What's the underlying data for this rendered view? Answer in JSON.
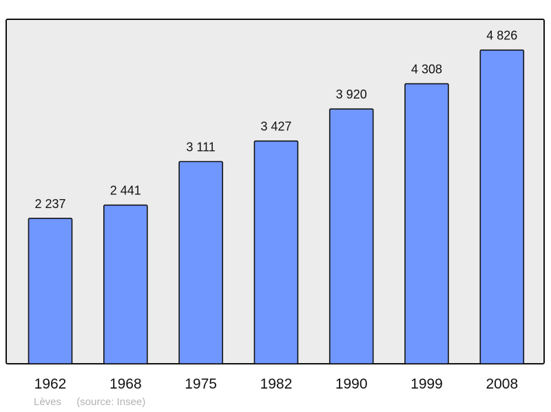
{
  "chart_data": {
    "type": "bar",
    "categories": [
      "1962",
      "1968",
      "1975",
      "1982",
      "1990",
      "1999",
      "2008"
    ],
    "values": [
      2237,
      2441,
      3111,
      3427,
      3920,
      4308,
      4826
    ],
    "value_labels": [
      "2 237",
      "2 441",
      "3 111",
      "3 427",
      "3 920",
      "4 308",
      "4 826"
    ],
    "title": "",
    "xlabel": "",
    "ylabel": "",
    "ylim": [
      0,
      5300
    ],
    "grid": false,
    "bar_color": "#7097ff",
    "background_color": "#ececec"
  },
  "footer": {
    "place": "Lèves",
    "source": "(source: Insee)"
  }
}
